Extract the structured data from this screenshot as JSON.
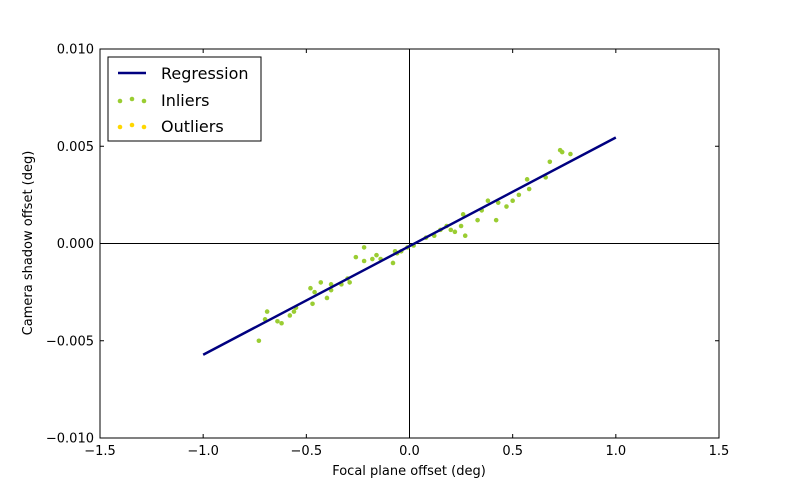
{
  "chart_data": {
    "type": "scatter",
    "xlabel": "Focal plane offset (deg)",
    "ylabel": "Camera shadow offset (deg)",
    "xlim": [
      -1.5,
      1.5
    ],
    "ylim": [
      -0.01,
      0.01
    ],
    "xticks": [
      -1.5,
      -1.0,
      -0.5,
      0.0,
      0.5,
      1.0,
      1.5
    ],
    "xtick_labels": [
      "−1.5",
      "−1.0",
      "−0.5",
      "0.0",
      "0.5",
      "1.0",
      "1.5"
    ],
    "yticks": [
      -0.01,
      -0.005,
      0.0,
      0.005,
      0.01
    ],
    "ytick_labels": [
      "−0.010",
      "−0.005",
      "0.000",
      "0.005",
      "0.010"
    ],
    "grid": false,
    "zero_lines": true,
    "legend": {
      "position": "top-left",
      "entries": [
        "Regression",
        "Inliers",
        "Outliers"
      ]
    },
    "colors": {
      "regression": "#000080",
      "inliers": "#9acd32",
      "outliers": "#ffd700",
      "zero_lines": "#000000"
    },
    "regression": {
      "name": "Regression",
      "x": [
        -1.0,
        1.0
      ],
      "y": [
        -0.00572,
        0.00545
      ]
    },
    "inliers": {
      "name": "Inliers",
      "points": [
        [
          -0.73,
          -0.005
        ],
        [
          -0.7,
          -0.0039
        ],
        [
          -0.69,
          -0.0035
        ],
        [
          -0.64,
          -0.004
        ],
        [
          -0.62,
          -0.0041
        ],
        [
          -0.58,
          -0.0037
        ],
        [
          -0.56,
          -0.0035
        ],
        [
          -0.55,
          -0.0033
        ],
        [
          -0.48,
          -0.0023
        ],
        [
          -0.47,
          -0.0031
        ],
        [
          -0.46,
          -0.0025
        ],
        [
          -0.43,
          -0.002
        ],
        [
          -0.4,
          -0.0028
        ],
        [
          -0.38,
          -0.0021
        ],
        [
          -0.38,
          -0.0024
        ],
        [
          -0.33,
          -0.0021
        ],
        [
          -0.3,
          -0.0018
        ],
        [
          -0.29,
          -0.002
        ],
        [
          -0.26,
          -0.0007
        ],
        [
          -0.22,
          -0.0002
        ],
        [
          -0.22,
          -0.0009
        ],
        [
          -0.18,
          -0.0008
        ],
        [
          -0.16,
          -0.0006
        ],
        [
          -0.14,
          -0.0008
        ],
        [
          -0.08,
          -0.001
        ],
        [
          -0.07,
          -0.0004
        ],
        [
          -0.06,
          -0.0005
        ],
        [
          -0.04,
          -0.0004
        ],
        [
          -0.01,
          -0.0002
        ],
        [
          0.02,
          -0.0001
        ],
        [
          0.08,
          0.0003
        ],
        [
          0.12,
          0.0004
        ],
        [
          0.15,
          0.0007
        ],
        [
          0.18,
          0.0009
        ],
        [
          0.2,
          0.0007
        ],
        [
          0.22,
          0.0006
        ],
        [
          0.25,
          0.0009
        ],
        [
          0.26,
          0.0015
        ],
        [
          0.27,
          0.0004
        ],
        [
          0.33,
          0.0012
        ],
        [
          0.35,
          0.0017
        ],
        [
          0.38,
          0.0022
        ],
        [
          0.42,
          0.0012
        ],
        [
          0.43,
          0.0021
        ],
        [
          0.47,
          0.0019
        ],
        [
          0.5,
          0.0022
        ],
        [
          0.53,
          0.0025
        ],
        [
          0.57,
          0.0033
        ],
        [
          0.58,
          0.0028
        ],
        [
          0.66,
          0.0034
        ],
        [
          0.68,
          0.0042
        ],
        [
          0.73,
          0.0048
        ],
        [
          0.74,
          0.0047
        ],
        [
          0.78,
          0.0046
        ]
      ]
    },
    "outliers": {
      "name": "Outliers",
      "points": []
    }
  }
}
